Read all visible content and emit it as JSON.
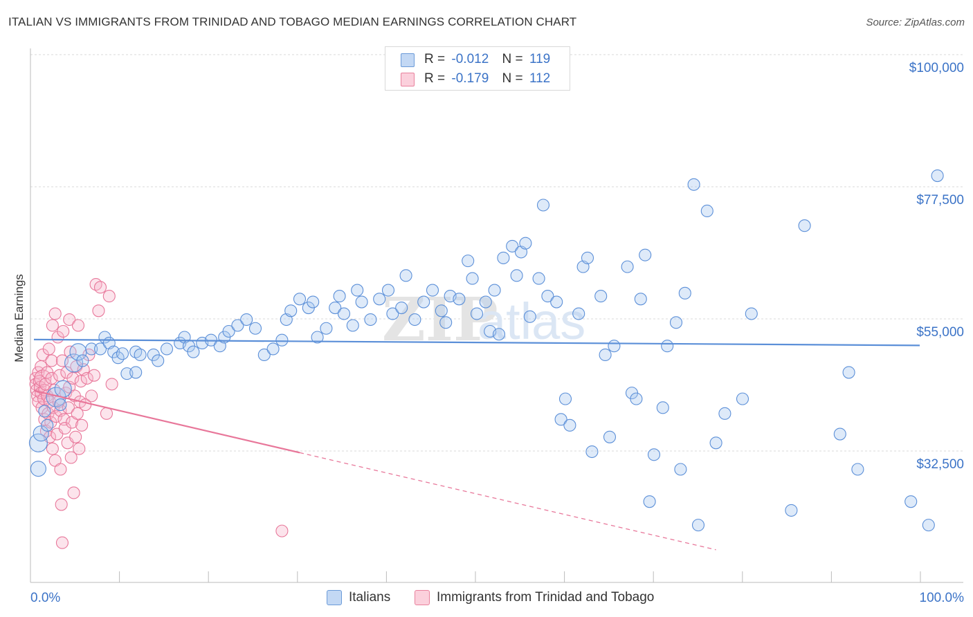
{
  "title": "ITALIAN VS IMMIGRANTS FROM TRINIDAD AND TOBAGO MEDIAN EARNINGS CORRELATION CHART",
  "source": "Source: ZipAtlas.com",
  "watermark": {
    "zip": "ZIP",
    "atlas": "atlas"
  },
  "legend": {
    "r_label": "R =",
    "n_label": "N =",
    "rows": [
      {
        "r": "-0.012",
        "n": "119",
        "color": "#a8c8f0",
        "border": "#6a9ad8"
      },
      {
        "r": "-0.179",
        "n": "112",
        "color": "#f8c0d0",
        "border": "#e8809c"
      }
    ]
  },
  "bottom_legend": [
    "Italians",
    "Immigrants from Trinidad and Tobago"
  ],
  "chart_data": {
    "type": "scatter",
    "ylabel": "Median Earnings",
    "x_tick_labels": [
      "0.0%",
      "100.0%"
    ],
    "y_tick_labels": [
      "$100,000",
      "$77,500",
      "$55,000",
      "$32,500"
    ],
    "xlim": [
      0,
      100
    ],
    "ylim": [
      12000,
      104000
    ],
    "y_ticks": [
      100000,
      77500,
      55000,
      32500
    ],
    "colors": {
      "italians": "#5b8fd8",
      "trinidad": "#e8779a",
      "axis_text": "#3b73c7"
    },
    "series": [
      {
        "name": "Italians",
        "trend": {
          "x": [
            0,
            100
          ],
          "y": [
            53600,
            52600
          ],
          "dashed_from": null
        },
        "points": [
          [
            0.5,
            31600
          ],
          [
            0.5,
            36000
          ],
          [
            0.8,
            37600
          ],
          [
            1.2,
            41400
          ],
          [
            1.5,
            39000
          ],
          [
            2.5,
            43800
          ],
          [
            3,
            42500
          ],
          [
            3.3,
            45200
          ],
          [
            4.5,
            49600
          ],
          [
            5,
            51500
          ],
          [
            5.5,
            50000
          ],
          [
            6.5,
            52000
          ],
          [
            7.5,
            52000
          ],
          [
            8,
            54000
          ],
          [
            8.5,
            53000
          ],
          [
            9,
            51500
          ],
          [
            9.5,
            50500
          ],
          [
            10,
            51200
          ],
          [
            10.5,
            47800
          ],
          [
            11.5,
            48000
          ],
          [
            11.5,
            51500
          ],
          [
            12,
            51000
          ],
          [
            13.5,
            51000
          ],
          [
            14,
            50000
          ],
          [
            15,
            52000
          ],
          [
            16.5,
            53000
          ],
          [
            17,
            54000
          ],
          [
            17.5,
            52500
          ],
          [
            18,
            51500
          ],
          [
            19,
            53000
          ],
          [
            20,
            53500
          ],
          [
            21,
            52500
          ],
          [
            21.5,
            54000
          ],
          [
            22,
            55000
          ],
          [
            23,
            56000
          ],
          [
            24,
            57000
          ],
          [
            25,
            55500
          ],
          [
            26,
            51000
          ],
          [
            27,
            52000
          ],
          [
            28,
            53500
          ],
          [
            28.5,
            57000
          ],
          [
            29,
            58500
          ],
          [
            30,
            60500
          ],
          [
            31,
            59000
          ],
          [
            31.5,
            60000
          ],
          [
            32,
            54000
          ],
          [
            33,
            55500
          ],
          [
            34,
            59000
          ],
          [
            34.5,
            61000
          ],
          [
            35,
            58000
          ],
          [
            36,
            56000
          ],
          [
            36.5,
            62000
          ],
          [
            37,
            60000
          ],
          [
            38,
            57000
          ],
          [
            39,
            60500
          ],
          [
            40,
            62000
          ],
          [
            40.5,
            58000
          ],
          [
            41.5,
            59000
          ],
          [
            42,
            64500
          ],
          [
            43,
            57000
          ],
          [
            44,
            60000
          ],
          [
            45,
            62000
          ],
          [
            46,
            58500
          ],
          [
            46.5,
            56500
          ],
          [
            47,
            61000
          ],
          [
            48,
            60500
          ],
          [
            49,
            67000
          ],
          [
            49.5,
            64000
          ],
          [
            50,
            58000
          ],
          [
            51,
            60000
          ],
          [
            51.5,
            55000
          ],
          [
            52,
            62000
          ],
          [
            52.5,
            54500
          ],
          [
            53,
            67500
          ],
          [
            54,
            69500
          ],
          [
            54.5,
            64500
          ],
          [
            55,
            68500
          ],
          [
            55.5,
            70000
          ],
          [
            56,
            57500
          ],
          [
            57,
            64000
          ],
          [
            57.5,
            76500
          ],
          [
            58,
            61000
          ],
          [
            59,
            60000
          ],
          [
            59.5,
            40000
          ],
          [
            60,
            43500
          ],
          [
            60.5,
            39000
          ],
          [
            61.5,
            58000
          ],
          [
            62,
            66000
          ],
          [
            62.5,
            67500
          ],
          [
            63,
            34500
          ],
          [
            64,
            61000
          ],
          [
            64.5,
            51000
          ],
          [
            65,
            37000
          ],
          [
            65.5,
            52500
          ],
          [
            67,
            66000
          ],
          [
            67.5,
            44500
          ],
          [
            68,
            43500
          ],
          [
            68.5,
            60500
          ],
          [
            69,
            68000
          ],
          [
            69.5,
            26000
          ],
          [
            70,
            34000
          ],
          [
            71,
            42000
          ],
          [
            71.5,
            52500
          ],
          [
            72.5,
            56500
          ],
          [
            73,
            31500
          ],
          [
            73.5,
            61500
          ],
          [
            74.5,
            80000
          ],
          [
            75,
            22000
          ],
          [
            76,
            75500
          ],
          [
            77,
            36000
          ],
          [
            78,
            41000
          ],
          [
            80,
            43500
          ],
          [
            81,
            58000
          ],
          [
            85.5,
            24500
          ],
          [
            87,
            73000
          ],
          [
            91,
            37500
          ],
          [
            92,
            48000
          ],
          [
            93,
            31500
          ],
          [
            99,
            26000
          ],
          [
            101,
            22000
          ],
          [
            102,
            81500
          ]
        ],
        "sizes": {
          "0.5,31600": 11,
          "0.5,36000": 13,
          "0.8,37600": 11,
          "2.5,43800": 14,
          "4.5,49600": 13,
          "5,51500": 12,
          "3.3,45200": 12
        }
      },
      {
        "name": "Immigrants from Trinidad and Tobago",
        "trend": {
          "x": [
            0,
            100
          ],
          "y": [
            44900,
            9700
          ],
          "dashed_from": 30
        },
        "points": [
          [
            0.2,
            47000
          ],
          [
            0.2,
            46000
          ],
          [
            0.3,
            45000
          ],
          [
            0.4,
            44000
          ],
          [
            0.5,
            43000
          ],
          [
            0.5,
            48000
          ],
          [
            0.6,
            46500
          ],
          [
            0.7,
            45500
          ],
          [
            0.8,
            44500
          ],
          [
            0.8,
            49000
          ],
          [
            0.9,
            42000
          ],
          [
            1,
            47000
          ],
          [
            1,
            51000
          ],
          [
            1.1,
            43500
          ],
          [
            1.2,
            40000
          ],
          [
            1.2,
            45000
          ],
          [
            1.3,
            46000
          ],
          [
            1.4,
            38000
          ],
          [
            1.5,
            48000
          ],
          [
            1.5,
            44000
          ],
          [
            1.6,
            41000
          ],
          [
            1.7,
            52000
          ],
          [
            1.8,
            37000
          ],
          [
            1.8,
            43000
          ],
          [
            1.9,
            39500
          ],
          [
            2,
            47000
          ],
          [
            2,
            50000
          ],
          [
            2.1,
            35000
          ],
          [
            2.1,
            56000
          ],
          [
            2.2,
            42000
          ],
          [
            2.3,
            45000
          ],
          [
            2.4,
            58000
          ],
          [
            2.4,
            33000
          ],
          [
            2.5,
            40500
          ],
          [
            2.6,
            37500
          ],
          [
            2.7,
            54000
          ],
          [
            2.8,
            43000
          ],
          [
            2.9,
            47500
          ],
          [
            3,
            41500
          ],
          [
            3,
            31500
          ],
          [
            3.1,
            25500
          ],
          [
            3.2,
            50000
          ],
          [
            3.2,
            19000
          ],
          [
            3.3,
            55000
          ],
          [
            3.4,
            40000
          ],
          [
            3.5,
            38500
          ],
          [
            3.6,
            44500
          ],
          [
            3.7,
            48000
          ],
          [
            3.8,
            36000
          ],
          [
            3.9,
            42000
          ],
          [
            4,
            45500
          ],
          [
            4,
            57000
          ],
          [
            4.1,
            51500
          ],
          [
            4.2,
            33500
          ],
          [
            4.3,
            39500
          ],
          [
            4.4,
            47000
          ],
          [
            4.5,
            27500
          ],
          [
            4.6,
            44000
          ],
          [
            4.7,
            37000
          ],
          [
            4.8,
            49000
          ],
          [
            4.9,
            41000
          ],
          [
            5,
            56000
          ],
          [
            5.1,
            35000
          ],
          [
            5.2,
            43000
          ],
          [
            5.3,
            46500
          ],
          [
            5.4,
            39000
          ],
          [
            5.6,
            48500
          ],
          [
            5.8,
            42500
          ],
          [
            6,
            47000
          ],
          [
            6.2,
            51000
          ],
          [
            6.5,
            44000
          ],
          [
            6.8,
            47500
          ],
          [
            7,
            63000
          ],
          [
            7.3,
            58500
          ],
          [
            7.5,
            62500
          ],
          [
            8.2,
            41000
          ],
          [
            8.5,
            61000
          ],
          [
            8.8,
            46000
          ],
          [
            28,
            21000
          ]
        ],
        "sizes": {
          "1,47000": 12,
          "2,42000": 12
        }
      }
    ]
  }
}
